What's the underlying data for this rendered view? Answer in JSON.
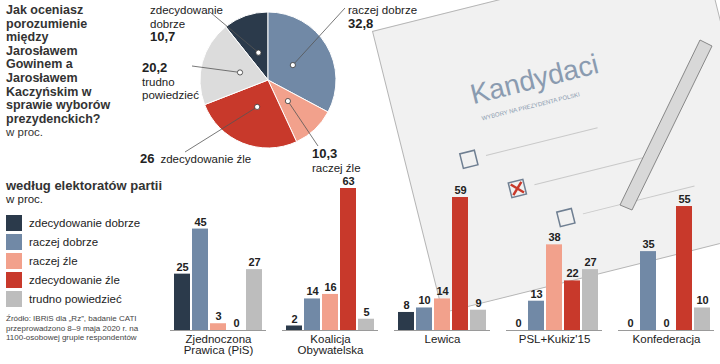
{
  "chart_data": [
    {
      "type": "pie",
      "title": "Jak oceniasz porozumienie między Jarosławem Gowinem a Jarosławem Kaczyńskim w sprawie wyborów prezydenckich?",
      "subtitle": "w proc.",
      "categories": [
        "zdecydowanie dobrze",
        "raczej dobrze",
        "raczej źle",
        "zdecydowanie źle",
        "trudno powiedzieć"
      ],
      "values": [
        10.7,
        32.8,
        10.3,
        26,
        20.2
      ],
      "value_labels": [
        "10,7",
        "32,8",
        "10,3",
        "26",
        "20,2"
      ],
      "colors": [
        "#2b3a4b",
        "#7189a6",
        "#f2a18c",
        "#c8392b",
        "#dcdcdc"
      ],
      "data_labels": true
    },
    {
      "type": "bar",
      "title": "według elektoratów partii",
      "subtitle": "w proc.",
      "categories": [
        "Zjednoczona Prawica (PiS)",
        "Koalicja Obywatelska",
        "Lewica",
        "PSL+Kukiz'15",
        "Konfederacja"
      ],
      "series": [
        {
          "name": "zdecydowanie dobrze",
          "color": "#2b3a4b",
          "values": [
            25,
            2,
            8,
            0,
            0
          ]
        },
        {
          "name": "raczej dobrze",
          "color": "#7189a6",
          "values": [
            45,
            14,
            10,
            13,
            35
          ]
        },
        {
          "name": "raczej źle",
          "color": "#f2a18c",
          "values": [
            3,
            16,
            14,
            38,
            0
          ]
        },
        {
          "name": "zdecydowanie źle",
          "color": "#c8392b",
          "values": [
            0,
            63,
            59,
            22,
            55
          ]
        },
        {
          "name": "trudno powiedzieć",
          "color": "#bdbdbd",
          "values": [
            27,
            5,
            9,
            27,
            10
          ]
        }
      ],
      "ylim": [
        0,
        63
      ],
      "data_labels": true,
      "tick_labels": "x",
      "legend": "left",
      "source": "Źródło: IBRiS dla „Rz”, badanie CATI przeprowadzono 8–9 maja 2020 r. na 1100-osobowej grupie respondentów"
    }
  ],
  "illustration": {
    "texts": [
      "Kandydaci",
      "WYBORY NA PREZYDENTA POLSKI"
    ]
  }
}
